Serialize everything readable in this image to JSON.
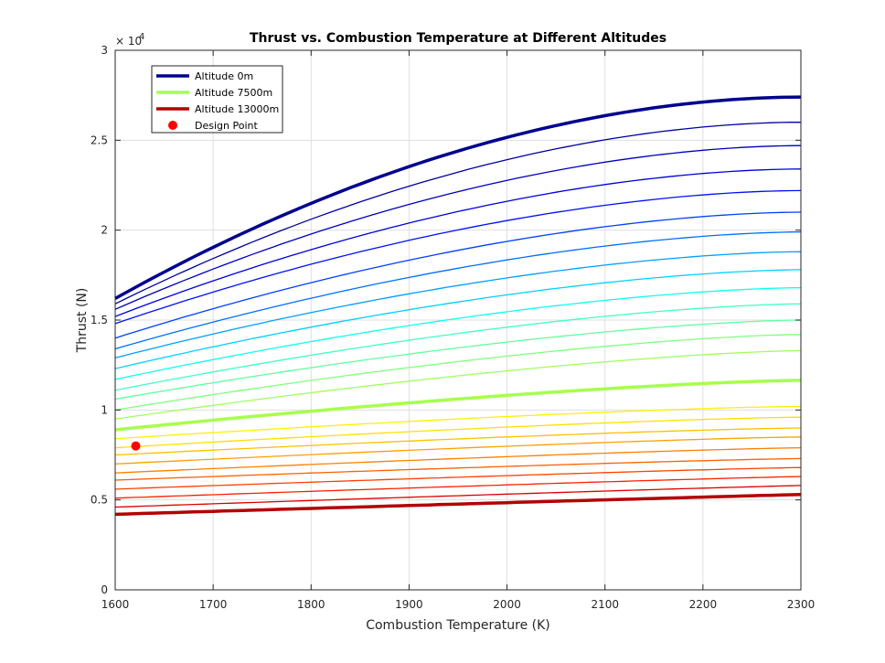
{
  "chart_data": {
    "type": "line",
    "title": "Thrust vs. Combustion Temperature at Different Altitudes",
    "xlabel": "Combustion Temperature (K)",
    "ylabel": "Thrust (N)",
    "xlim": [
      1600,
      2300
    ],
    "ylim": [
      0,
      30000
    ],
    "x_ticks": [
      1600,
      1700,
      1800,
      1900,
      2000,
      2100,
      2200,
      2300
    ],
    "y_ticks": [
      0,
      5000,
      10000,
      15000,
      20000,
      25000,
      30000
    ],
    "y_tick_labels": [
      "0",
      "0.5",
      "1",
      "1.5",
      "2",
      "2.5",
      "3"
    ],
    "y_exponent_label": "× 10",
    "y_exponent_power": "4",
    "grid": true,
    "legend_position": "top-left",
    "x": [
      1600,
      1610,
      1650,
      1700,
      1800,
      1900,
      2000,
      2100,
      2200,
      2300
    ],
    "series": [
      {
        "name": "Altitude 0m",
        "color": "#00008f",
        "highlight": true,
        "y_start": 16200,
        "y_end": 27400
      },
      {
        "color": "#00009f",
        "y_start": 15900,
        "y_end": 26000
      },
      {
        "color": "#0000bf",
        "y_start": 15600,
        "y_end": 24700
      },
      {
        "color": "#0000df",
        "y_start": 15200,
        "y_end": 23400
      },
      {
        "color": "#0010ff",
        "y_start": 14800,
        "y_end": 22200
      },
      {
        "color": "#0040ff",
        "y_start": 14000,
        "y_end": 21000
      },
      {
        "color": "#0070ff",
        "y_start": 13400,
        "y_end": 19900
      },
      {
        "color": "#00a0ff",
        "y_start": 12900,
        "y_end": 18800
      },
      {
        "color": "#00d0ff",
        "y_start": 12300,
        "y_end": 17800
      },
      {
        "color": "#10ffef",
        "y_start": 11700,
        "y_end": 16800
      },
      {
        "color": "#40ffbf",
        "y_start": 11100,
        "y_end": 15900
      },
      {
        "color": "#60ff9f",
        "y_start": 10600,
        "y_end": 15000
      },
      {
        "color": "#80ff7f",
        "y_start": 10000,
        "y_end": 14200
      },
      {
        "color": "#9fff60",
        "y_start": 9500,
        "y_end": 13300
      },
      {
        "name": "Altitude 7500m",
        "color": "#a6ff4d",
        "highlight": true,
        "y_start": 8900,
        "y_end": 11650
      },
      {
        "color": "#ffef00",
        "y_start": 8400,
        "y_end": 10200
      },
      {
        "color": "#ffdf00",
        "y_start": 7900,
        "y_end": 9600
      },
      {
        "color": "#ffbf00",
        "y_start": 7500,
        "y_end": 9000
      },
      {
        "color": "#ff9f00",
        "y_start": 7000,
        "y_end": 8500
      },
      {
        "color": "#ff8000",
        "y_start": 6500,
        "y_end": 7900
      },
      {
        "color": "#ff6000",
        "y_start": 6100,
        "y_end": 7300
      },
      {
        "color": "#ff4000",
        "y_start": 5600,
        "y_end": 6800
      },
      {
        "color": "#ff2000",
        "y_start": 5100,
        "y_end": 6300
      },
      {
        "color": "#df0000",
        "y_start": 4600,
        "y_end": 5800
      },
      {
        "name": "Altitude 13000m",
        "color": "#b40000",
        "highlight": true,
        "y_start": 4200,
        "y_end": 5300
      }
    ],
    "design_point": {
      "name": "Design Point",
      "x": 1621,
      "y": 8000,
      "color": "#ff0000"
    }
  }
}
